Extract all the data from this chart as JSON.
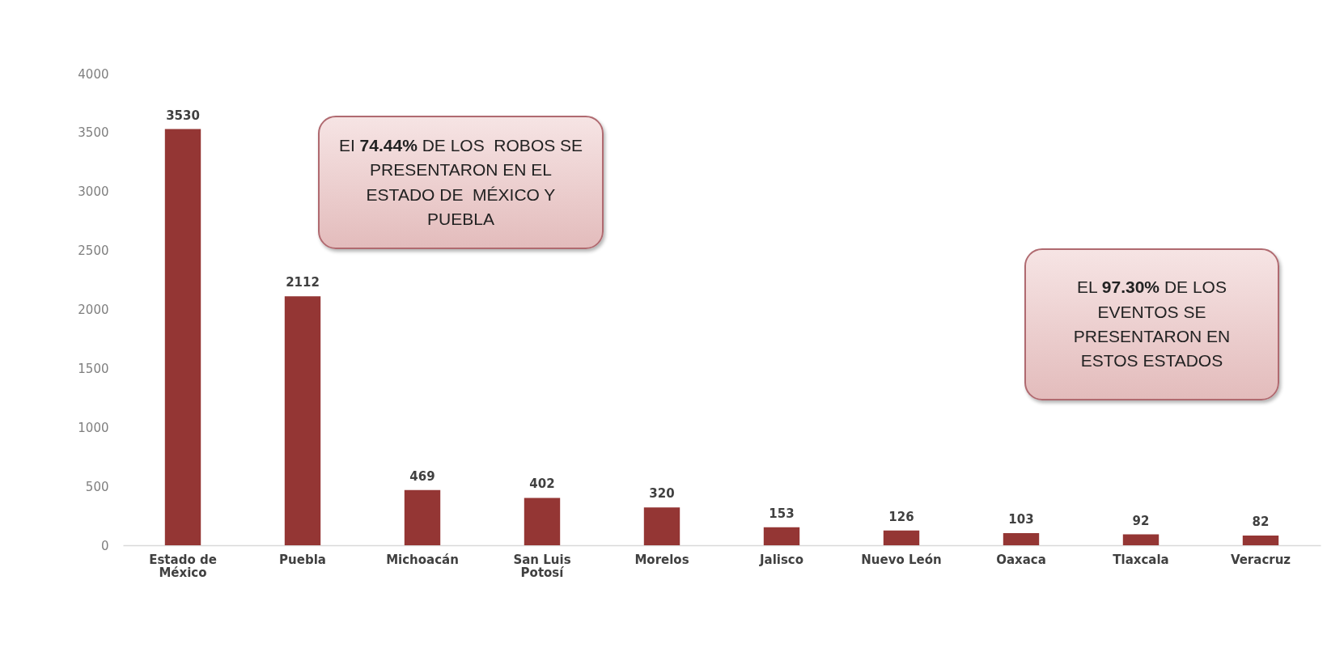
{
  "chart_data": {
    "type": "bar",
    "categories": [
      "Estado de México",
      "Puebla",
      "Michoacán",
      "San Luis Potosí",
      "Morelos",
      "Jalisco",
      "Nuevo León",
      "Oaxaca",
      "Tlaxcala",
      "Veracruz"
    ],
    "values": [
      3530,
      2112,
      469,
      402,
      320,
      153,
      126,
      103,
      92,
      82
    ],
    "color": "#943634",
    "ylim": [
      0,
      4000
    ],
    "yticks": [
      0,
      500,
      1000,
      1500,
      2000,
      2500,
      3000,
      3500,
      4000
    ],
    "grid": false,
    "data_labels": true,
    "annotations": [
      "EI 74.44% DE LOS  ROBOS SE PRESENTARON EN EL ESTADO DE  MÉXICO Y PUEBLA",
      "EL 97.30% DE LOS EVENTOS SE PRESENTARON EN ESTOS ESTADOS"
    ]
  }
}
